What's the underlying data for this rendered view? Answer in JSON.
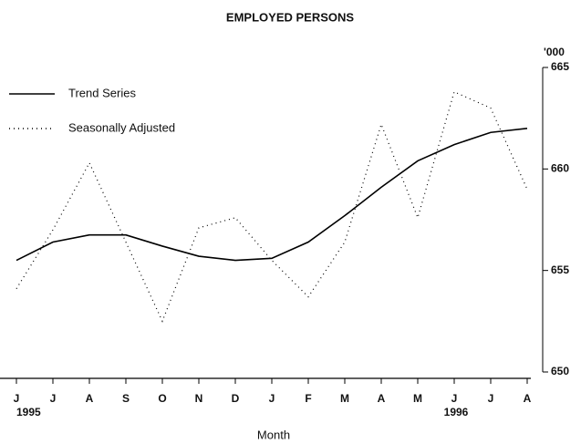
{
  "chart_data": {
    "type": "line",
    "title": "EMPLOYED PERSONS",
    "x_label": "Month",
    "y_unit_label": "'000",
    "categories": [
      "J",
      "J",
      "A",
      "S",
      "O",
      "N",
      "D",
      "J",
      "F",
      "M",
      "A",
      "M",
      "J",
      "J",
      "A"
    ],
    "category_years": [
      "1995",
      null,
      null,
      null,
      null,
      null,
      null,
      null,
      null,
      null,
      null,
      null,
      "1996",
      null,
      null
    ],
    "series": [
      {
        "name": "Trend Series",
        "color": "#000000",
        "style": "solid",
        "values": [
          655.5,
          656.4,
          656.75,
          656.75,
          656.2,
          655.7,
          655.5,
          655.6,
          656.4,
          657.7,
          659.1,
          660.4,
          661.2,
          661.8,
          662.0
        ]
      },
      {
        "name": "Seasonally Adjusted",
        "color": "#000000",
        "style": "dotted",
        "values": [
          654.1,
          657.0,
          660.3,
          656.4,
          652.5,
          657.1,
          657.6,
          655.5,
          653.7,
          656.4,
          662.2,
          657.6,
          663.8,
          663.0,
          659.0
        ]
      }
    ],
    "ylim": [
      650,
      665
    ],
    "yticks": [
      650,
      655,
      660,
      665
    ],
    "y_axis_side": "right",
    "legend": "upper left",
    "grid": false
  }
}
